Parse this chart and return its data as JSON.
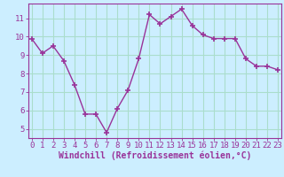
{
  "hours": [
    0,
    1,
    2,
    3,
    4,
    5,
    6,
    7,
    8,
    9,
    10,
    11,
    12,
    13,
    14,
    15,
    16,
    17,
    18,
    19,
    20,
    21,
    22,
    23
  ],
  "windchill": [
    9.9,
    9.1,
    9.5,
    8.7,
    7.4,
    5.8,
    5.8,
    4.8,
    6.1,
    7.1,
    8.8,
    11.2,
    10.7,
    11.1,
    11.5,
    10.6,
    10.1,
    9.9,
    9.9,
    9.9,
    8.8,
    8.4,
    8.4,
    8.2
  ],
  "line_color": "#993399",
  "marker": "+",
  "bg_color": "#cceeff",
  "grid_color": "#aaddcc",
  "axis_color": "#993399",
  "xlabel": "Windchill (Refroidissement éolien,°C)",
  "ylim": [
    4.5,
    11.8
  ],
  "yticks": [
    5,
    6,
    7,
    8,
    9,
    10,
    11
  ],
  "xticks": [
    0,
    1,
    2,
    3,
    4,
    5,
    6,
    7,
    8,
    9,
    10,
    11,
    12,
    13,
    14,
    15,
    16,
    17,
    18,
    19,
    20,
    21,
    22,
    23
  ],
  "tick_fontsize": 6.5,
  "xlabel_fontsize": 7.0,
  "marker_size": 4,
  "linewidth": 1.0
}
